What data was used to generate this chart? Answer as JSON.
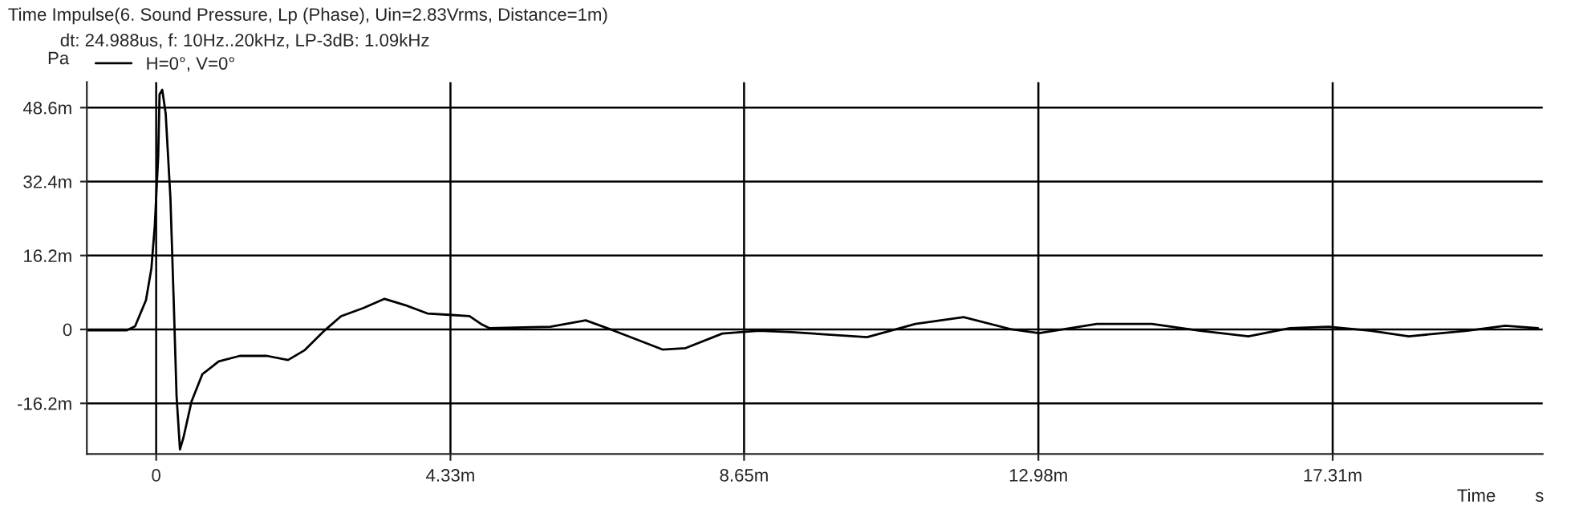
{
  "chart_data": {
    "type": "line",
    "title": "Time Impulse(6. Sound Pressure, Lp (Phase), Uin=2.83Vrms, Distance=1m)",
    "subtitle": "dt: 24.988us, f: 10Hz..20kHz, LP-3dB: 1.09kHz",
    "xlabel": "Time",
    "ylabel": "Pa",
    "annotations": [
      "s"
    ],
    "xlim": [
      -1.02,
      20.4
    ],
    "ylim": [
      -27.3,
      54.2
    ],
    "xticks": [
      0,
      {
        "value": 4.33,
        "label": "4.33m"
      },
      {
        "value": 8.65,
        "label": "8.65m"
      },
      {
        "value": 12.98,
        "label": "12.98m"
      },
      {
        "value": 17.31,
        "label": "17.31m"
      }
    ],
    "yticks": [
      {
        "value": -16.2,
        "label": "-16.2m"
      },
      0,
      {
        "value": 16.2,
        "label": "16.2m"
      },
      {
        "value": 32.4,
        "label": "32.4m"
      },
      {
        "value": 48.6,
        "label": "48.6m"
      }
    ],
    "grid": true,
    "legend": "top left",
    "line_style": "solid",
    "marker": "none",
    "series": [
      {
        "name": "H=0°, V=0°",
        "color": "#000000",
        "x": [
          -1.02,
          -0.43,
          -0.31,
          -0.15,
          -0.07,
          -0.02,
          0.03,
          0.05,
          0.09,
          0.14,
          0.21,
          0.26,
          0.3,
          0.35,
          0.4,
          0.52,
          0.68,
          0.92,
          1.23,
          1.63,
          1.94,
          2.18,
          2.48,
          2.72,
          3.05,
          3.36,
          3.67,
          3.99,
          4.31,
          4.61,
          4.78,
          4.9,
          5.8,
          6.32,
          6.74,
          7.45,
          7.79,
          8.33,
          8.87,
          9.35,
          10.46,
          11.17,
          11.88,
          12.59,
          12.99,
          13.84,
          14.65,
          15.36,
          16.07,
          16.68,
          17.25,
          17.87,
          18.43,
          19.29,
          19.85,
          20.33
        ],
        "values": [
          -0.2,
          -0.2,
          0.7,
          6.4,
          13.4,
          22.8,
          37.9,
          51.5,
          52.5,
          47.3,
          28.7,
          5.3,
          -14.6,
          -26.3,
          -23.8,
          -15.8,
          -9.8,
          -7.0,
          -5.8,
          -5.8,
          -6.7,
          -4.6,
          -0.2,
          2.9,
          4.7,
          6.7,
          5.3,
          3.5,
          3.2,
          2.9,
          1.2,
          0.3,
          0.6,
          2.0,
          -0.3,
          -4.4,
          -4.1,
          -0.9,
          -0.3,
          -0.6,
          -1.7,
          1.2,
          2.7,
          0.0,
          -0.8,
          1.2,
          1.2,
          -0.3,
          -1.5,
          0.3,
          0.6,
          -0.3,
          -1.5,
          -0.3,
          0.8,
          0.3
        ]
      }
    ]
  }
}
